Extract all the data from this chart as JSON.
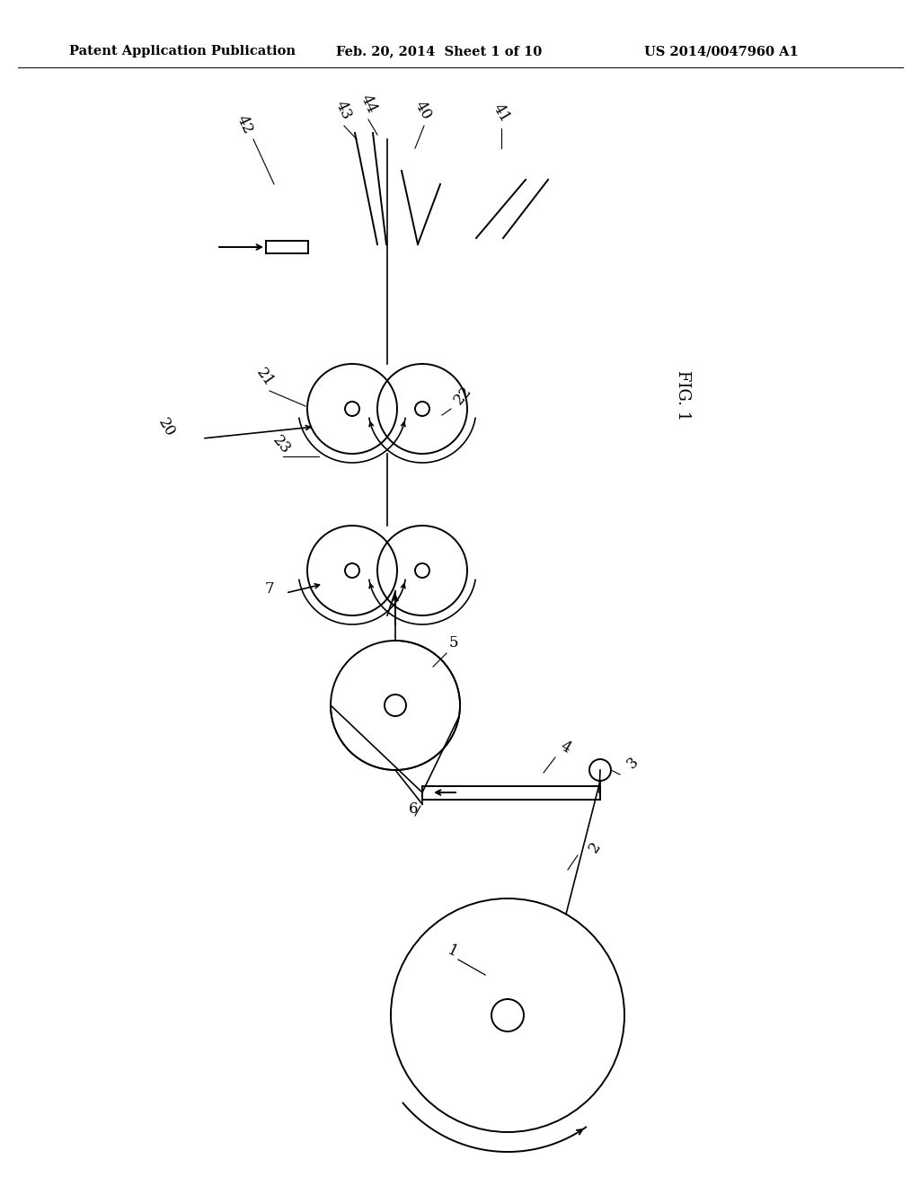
{
  "header_left": "Patent Application Publication",
  "header_mid": "Feb. 20, 2014  Sheet 1 of 10",
  "header_right": "US 2014/0047960 A1",
  "fig_label": "FIG. 1",
  "bg_color": "#ffffff",
  "line_color": "#000000",
  "header_font_size": 10.5
}
